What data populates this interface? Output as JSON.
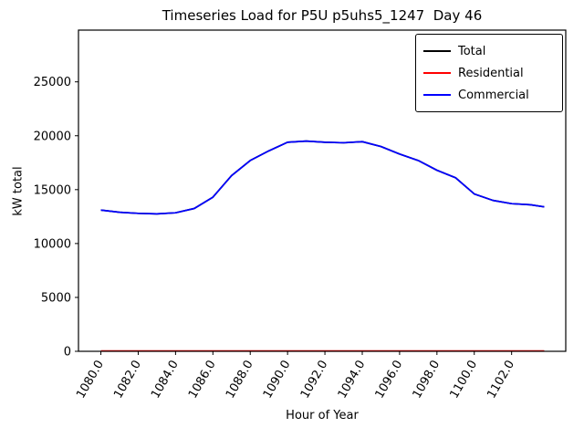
{
  "chart_data": {
    "type": "line",
    "title": "Timeseries Load for P5U p5uhs5_1247  Day 46",
    "xlabel": "Hour of Year",
    "ylabel": "kW total",
    "xlim": [
      1078.8,
      1104.9
    ],
    "ylim": [
      0,
      29800
    ],
    "grid": false,
    "legend_position": "upper right",
    "y_ticks": [
      0,
      5000,
      10000,
      15000,
      20000,
      25000
    ],
    "x_ticks": [
      1080,
      1082,
      1084,
      1086,
      1088,
      1090,
      1092,
      1094,
      1096,
      1098,
      1100,
      1102
    ],
    "x_tick_labels": [
      "1080.0",
      "1082.0",
      "1084.0",
      "1086.0",
      "1088.0",
      "1090.0",
      "1092.0",
      "1094.0",
      "1096.0",
      "1098.0",
      "1100.0",
      "1102.0"
    ],
    "x": [
      1080,
      1081,
      1082,
      1083,
      1084,
      1085,
      1086,
      1087,
      1088,
      1089,
      1090,
      1091,
      1092,
      1093,
      1094,
      1095,
      1096,
      1097,
      1098,
      1099,
      1100,
      1101,
      1102,
      1103,
      1103.75
    ],
    "series": [
      {
        "name": "Total",
        "color": "#000000",
        "values": [
          13100,
          12900,
          12800,
          12750,
          12850,
          13250,
          14300,
          16300,
          17700,
          18600,
          19400,
          19500,
          19400,
          19350,
          19450,
          19000,
          18300,
          17700,
          16800,
          16100,
          14600,
          14000,
          13700,
          13600,
          13400
        ]
      },
      {
        "name": "Residential",
        "color": "#ff0000",
        "values": [
          30,
          30,
          30,
          30,
          30,
          30,
          30,
          30,
          30,
          30,
          30,
          30,
          30,
          30,
          30,
          30,
          30,
          30,
          30,
          30,
          30,
          30,
          30,
          30,
          30
        ]
      },
      {
        "name": "Commercial",
        "color": "#0000ff",
        "values": [
          13100,
          12900,
          12800,
          12750,
          12850,
          13250,
          14300,
          16300,
          17700,
          18600,
          19400,
          19500,
          19400,
          19350,
          19450,
          19000,
          18300,
          17700,
          16800,
          16100,
          14600,
          14000,
          13700,
          13600,
          13400
        ]
      }
    ]
  }
}
